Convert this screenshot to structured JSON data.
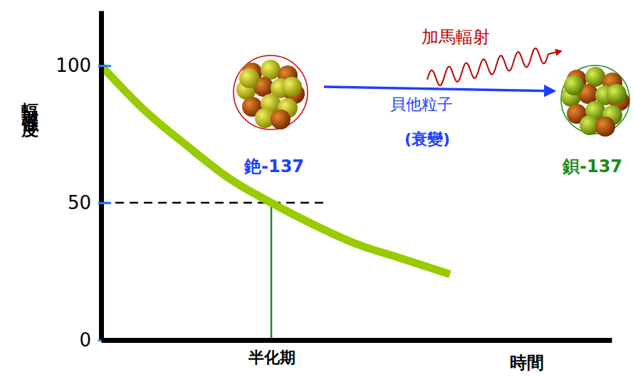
{
  "chart_data": {
    "type": "line",
    "x_label": "時間",
    "y_label": "輻射強度",
    "x": [
      0,
      0.25,
      0.5,
      0.75,
      1,
      1.25,
      1.5,
      1.75,
      2.05
    ],
    "values": [
      100,
      84,
      71,
      59,
      50,
      42,
      35,
      30,
      24
    ],
    "color": "#99cc00",
    "xlim": [
      0,
      3
    ],
    "xticks": [
      {
        "value": 1,
        "label": "半化期"
      }
    ],
    "ylim": [
      0,
      120
    ],
    "yticks": [
      0,
      50,
      100
    ],
    "half_life": {
      "x": 1,
      "y": 50
    },
    "annotations": {
      "parent": "銫-137",
      "daughter": "鋇-137",
      "gamma": "加馬輻射",
      "beta": "貝他粒子",
      "process": "(衰變)"
    }
  }
}
